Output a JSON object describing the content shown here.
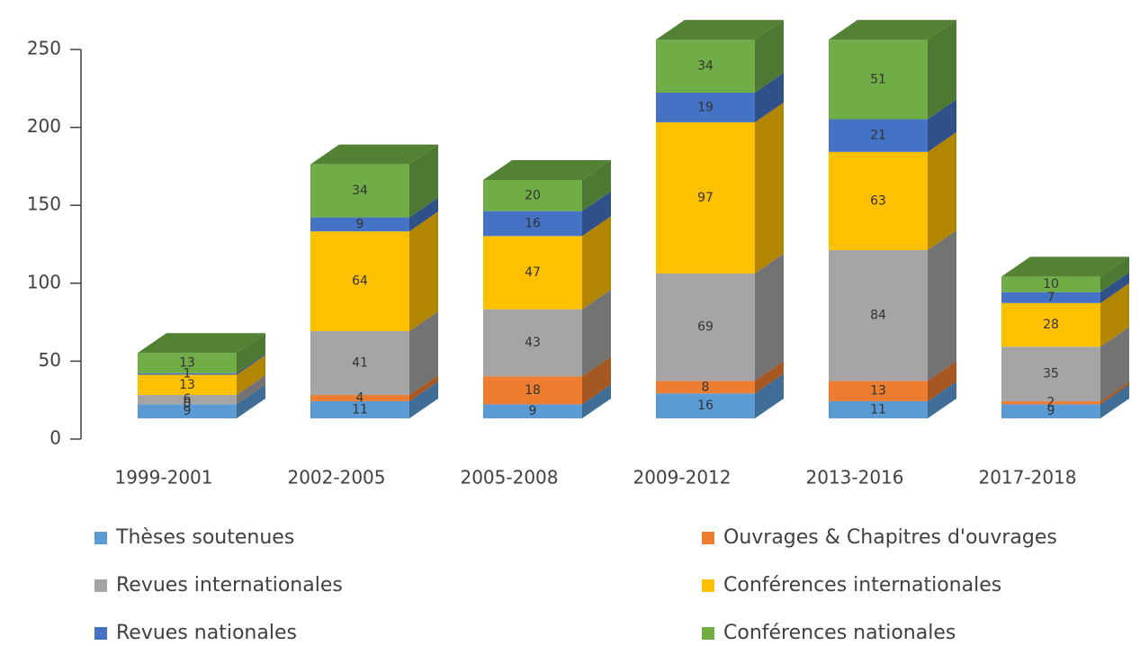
{
  "chart_data": {
    "type": "bar3d_stacked",
    "categories": [
      "1999-2001",
      "2002-2005",
      "2005-2008",
      "2009-2012",
      "2013-2016",
      "2017-2018"
    ],
    "series": [
      {
        "name": "Thèses soutenues",
        "color": "#5b9bd5",
        "values": [
          9,
          11,
          9,
          16,
          11,
          9
        ]
      },
      {
        "name": "Ouvrages & Chapitres d'ouvrages",
        "color": "#ed7d31",
        "values": [
          0,
          4,
          18,
          8,
          13,
          2
        ]
      },
      {
        "name": "Revues internationales",
        "color": "#a5a5a5",
        "values": [
          6,
          41,
          43,
          69,
          84,
          35
        ]
      },
      {
        "name": "Conférences internationales",
        "color": "#ffc000",
        "values": [
          13,
          64,
          47,
          97,
          63,
          28
        ]
      },
      {
        "name": "Revues nationales",
        "color": "#4472c4",
        "values": [
          1,
          9,
          16,
          19,
          21,
          7
        ]
      },
      {
        "name": "Conférences nationales",
        "color": "#70ad47",
        "values": [
          13,
          34,
          20,
          34,
          51,
          10
        ]
      }
    ],
    "ylim": [
      0,
      250
    ],
    "yticks": [
      0,
      50,
      100,
      150,
      200,
      250
    ],
    "legend": "bottom"
  }
}
